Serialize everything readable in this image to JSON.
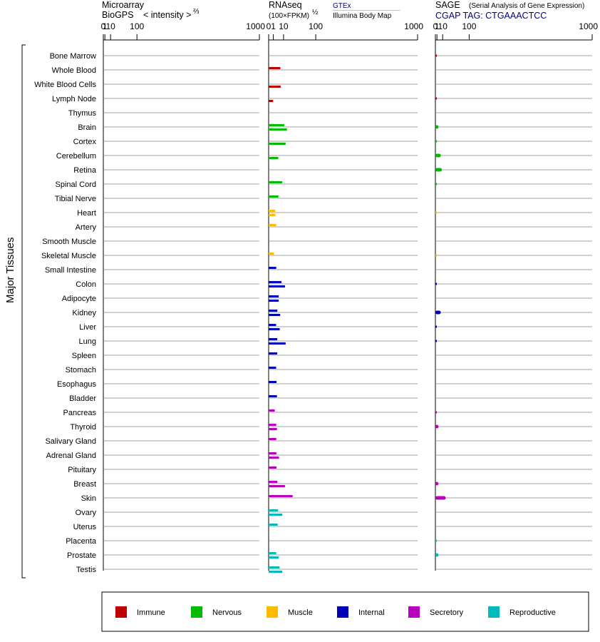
{
  "headers": {
    "microarray_title": "Microarray",
    "microarray_sub": "BioGPS",
    "microarray_scale": "< intensity >",
    "microarray_power": "⅔",
    "rnaseq_title": "RNAseq",
    "rnaseq_sub": "(100×FPKM)",
    "rnaseq_power": "½",
    "gtex_label": "GTEx",
    "ibm_label": "Illumina Body Map",
    "sage_title": "SAGE",
    "sage_sub": "(Serial Analysis of Gene Expression)",
    "sage_tag": "CGAP TAG: CTGAAACTCC"
  },
  "tick_labels": [
    "0",
    "1",
    "10",
    "100",
    "1000"
  ],
  "side_label": "Major Tissues",
  "colors": {
    "Immune": "#c00000",
    "Nervous": "#00bb00",
    "Muscle": "#ffbb00",
    "Internal": "#0000bb",
    "Secretory": "#bb00bb",
    "Reproductive": "#00bbbb",
    "grid": "#888888",
    "axis": "#000000"
  },
  "legend": [
    "Immune",
    "Nervous",
    "Muscle",
    "Internal",
    "Secretory",
    "Reproductive"
  ],
  "chart_data": {
    "type": "bar",
    "orientation": "horizontal",
    "scale_note": "values on axes 0,1,10,100,1000",
    "categories": [
      "Bone Marrow",
      "Whole Blood",
      "White Blood Cells",
      "Lymph Node",
      "Thymus",
      "Brain",
      "Cortex",
      "Cerebellum",
      "Retina",
      "Spinal Cord",
      "Tibial Nerve",
      "Heart",
      "Artery",
      "Smooth Muscle",
      "Skeletal Muscle",
      "Small Intestine",
      "Colon",
      "Adipocyte",
      "Kidney",
      "Liver",
      "Lung",
      "Spleen",
      "Stomach",
      "Esophagus",
      "Bladder",
      "Pancreas",
      "Thyroid",
      "Salivary Gland",
      "Adrenal Gland",
      "Pituitary",
      "Breast",
      "Skin",
      "Ovary",
      "Uterus",
      "Placenta",
      "Prostate",
      "Testis"
    ],
    "systems": [
      "Immune",
      "Immune",
      "Immune",
      "Immune",
      "Immune",
      "Nervous",
      "Nervous",
      "Nervous",
      "Nervous",
      "Nervous",
      "Nervous",
      "Muscle",
      "Muscle",
      "Muscle",
      "Muscle",
      "Internal",
      "Internal",
      "Internal",
      "Internal",
      "Internal",
      "Internal",
      "Internal",
      "Internal",
      "Internal",
      "Internal",
      "Secretory",
      "Secretory",
      "Secretory",
      "Secretory",
      "Secretory",
      "Secretory",
      "Secretory",
      "Reproductive",
      "Reproductive",
      "Reproductive",
      "Reproductive",
      "Reproductive"
    ],
    "series": [
      {
        "name": "GTEx",
        "values": [
          null,
          6.2,
          null,
          null,
          null,
          11,
          null,
          null,
          null,
          8.4,
          4.3,
          2.0,
          2.6,
          null,
          1.3,
          2.6,
          7.4,
          4.5,
          3.4,
          2.5,
          3.3,
          3.3,
          2.5,
          2.8,
          3.1,
          1.7,
          2.6,
          2.6,
          2.7,
          2.8,
          3.4,
          26,
          4.0,
          3.7,
          null,
          2.6,
          5.4
        ]
      },
      {
        "name": "Illumina Body Map",
        "values": [
          null,
          null,
          6.5,
          0.9,
          null,
          15,
          13,
          4.2,
          null,
          null,
          null,
          2.1,
          null,
          null,
          null,
          null,
          12,
          4.6,
          6.0,
          5.5,
          13,
          null,
          null,
          null,
          null,
          null,
          3.1,
          null,
          4.8,
          null,
          12,
          null,
          8.4,
          null,
          null,
          4.6,
          8.4
        ]
      },
      {
        "name": "SAGE",
        "values": [
          0,
          null,
          null,
          0,
          null,
          2.7,
          0,
          6.4,
          8.5,
          0,
          null,
          0,
          null,
          null,
          0,
          null,
          0,
          null,
          6.4,
          0,
          0,
          null,
          null,
          null,
          null,
          0,
          2.8,
          null,
          null,
          null,
          2.7,
          17,
          null,
          null,
          0,
          2.8,
          null
        ]
      }
    ]
  }
}
